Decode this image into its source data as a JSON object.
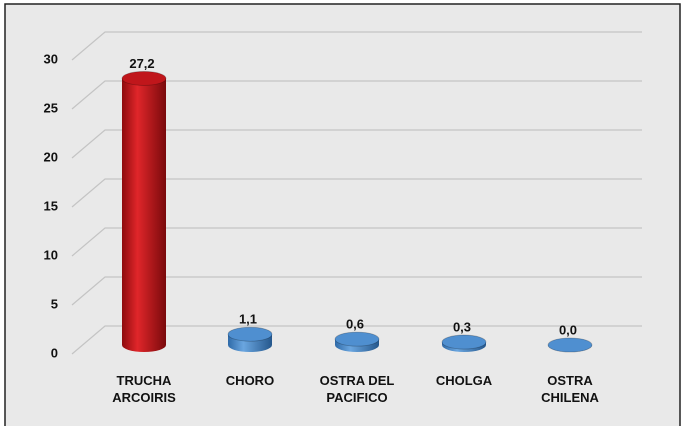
{
  "chart_data": {
    "type": "bar",
    "categories": [
      "TRUCHA ARCOIRIS",
      "CHORO",
      "OSTRA DEL PACIFICO",
      "CHOLGA",
      "OSTRA CHILENA"
    ],
    "values": [
      27.2,
      1.1,
      0.6,
      0.3,
      0.0
    ],
    "value_labels": [
      "27,2",
      "1,1",
      "0,6",
      "0,3",
      "0,0"
    ],
    "colors": [
      "#c0161b",
      "#4f8fd0",
      "#4f8fd0",
      "#4f8fd0",
      "#4f8fd0"
    ],
    "ylim": [
      0,
      30
    ],
    "yticks": [
      0,
      5,
      10,
      15,
      20,
      25,
      30
    ],
    "grid": true
  }
}
